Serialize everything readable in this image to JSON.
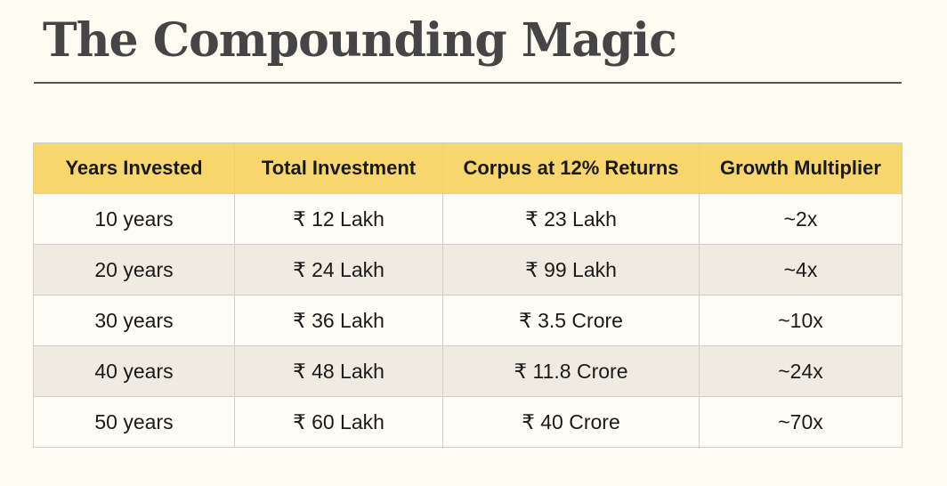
{
  "title": "The Compounding Magic",
  "table": {
    "headers": [
      "Years Invested",
      "Total Investment",
      "Corpus at 12% Returns",
      "Growth Multiplier"
    ],
    "rows": [
      [
        "10 years",
        "₹ 12 Lakh",
        "₹ 23 Lakh",
        "~2x"
      ],
      [
        "20 years",
        "₹ 24 Lakh",
        "₹ 99 Lakh",
        "~4x"
      ],
      [
        "30 years",
        "₹ 36 Lakh",
        "₹ 3.5 Crore",
        "~10x"
      ],
      [
        "40 years",
        "₹ 48 Lakh",
        "₹ 11.8 Crore",
        "~24x"
      ],
      [
        "50 years",
        "₹ 60 Lakh",
        "₹ 40 Crore",
        "~70x"
      ]
    ]
  },
  "colors": {
    "header_background": "#f8d66e",
    "row_odd": "#fffdf5",
    "row_even": "#efebe3",
    "title_text": "#454545",
    "page_background": "#fefcf2"
  }
}
